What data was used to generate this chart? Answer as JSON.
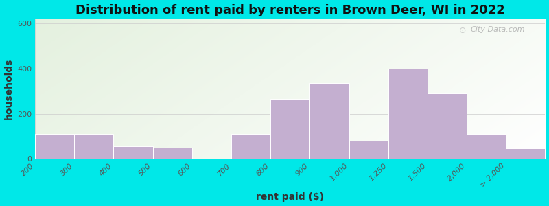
{
  "title": "Distribution of rent paid by renters in Brown Deer, WI in 2022",
  "xlabel": "rent paid ($)",
  "ylabel": "households",
  "tick_labels": [
    "200",
    "300",
    "400",
    "500",
    "600",
    "700",
    "800",
    "900",
    "1,000",
    "1,250",
    "1,500",
    "2,000",
    "> 2,000"
  ],
  "bar_values": [
    110,
    110,
    55,
    50,
    0,
    110,
    265,
    335,
    80,
    400,
    290,
    110,
    45
  ],
  "bar_color": "#c4afd0",
  "bar_edge_color": "#ffffff",
  "background_outer": "#00e8e8",
  "bg_gradient_left": "#c8e6c0",
  "bg_gradient_right": "#f0f5ec",
  "ylim": [
    0,
    620
  ],
  "yticks": [
    0,
    200,
    400,
    600
  ],
  "title_fontsize": 13,
  "axis_label_fontsize": 10,
  "tick_fontsize": 8,
  "watermark_text": "City-Data.com"
}
